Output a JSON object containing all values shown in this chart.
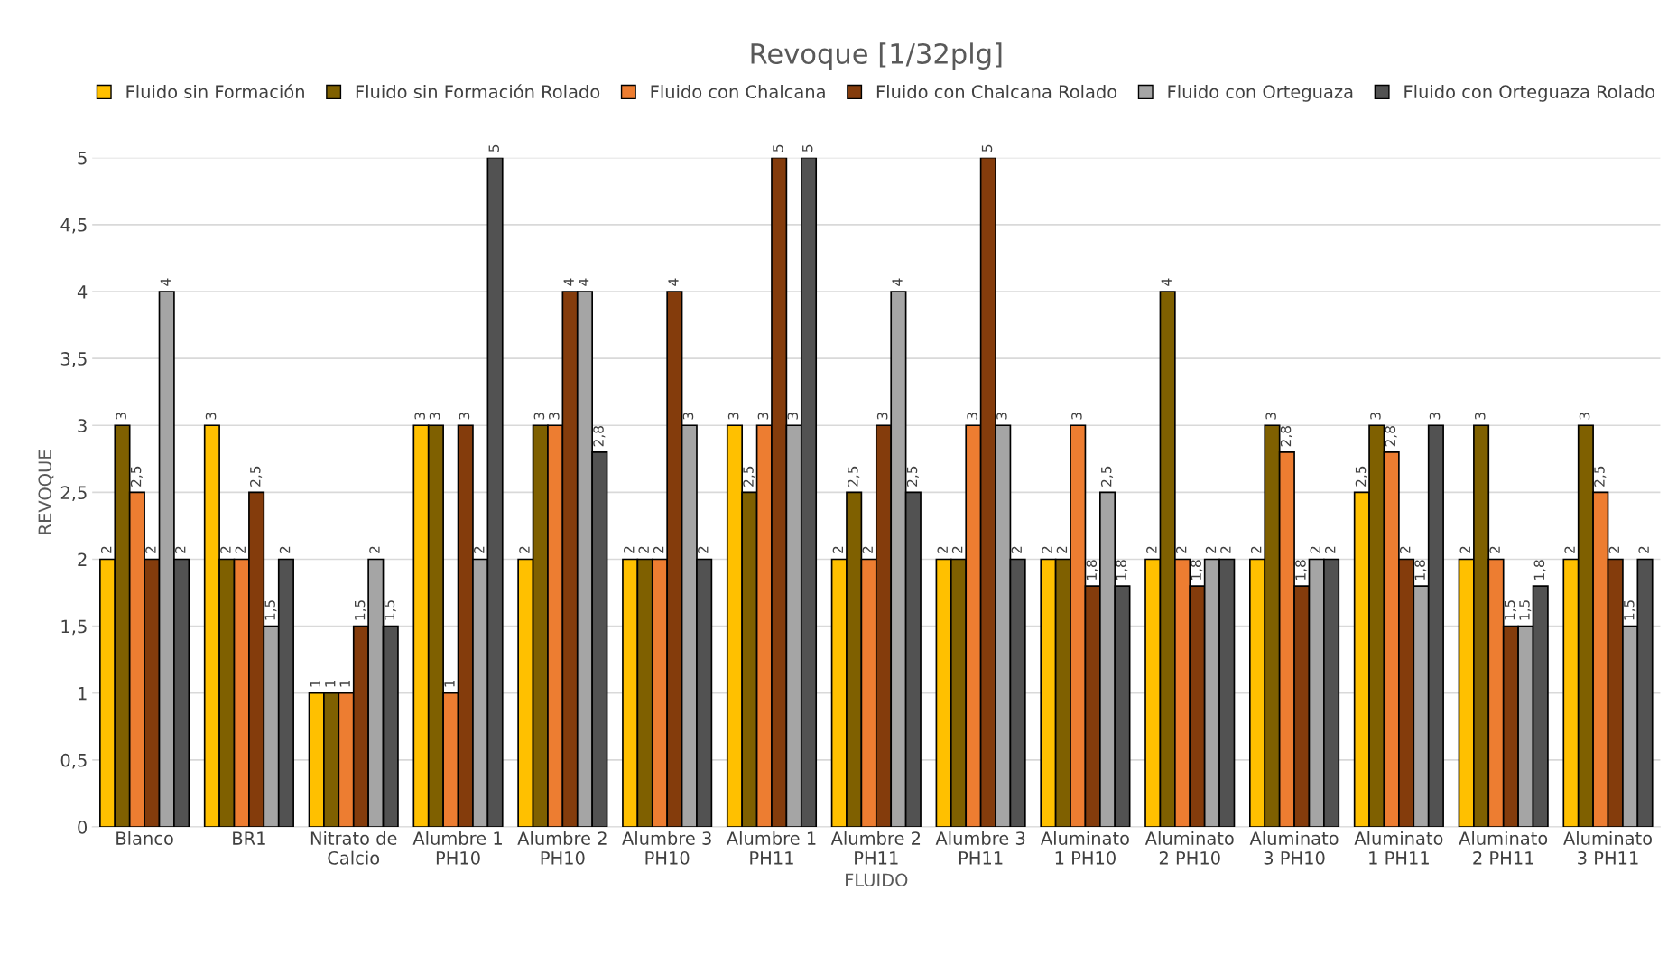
{
  "chart_data": {
    "type": "bar",
    "title": "Revoque [1/32plg]",
    "xlabel": "FLUIDO",
    "ylabel": "REVOQUE",
    "categories": [
      "Blanco",
      "BR1",
      "Nitrato de\nCalcio",
      "Alumbre 1\nPH10",
      "Alumbre 2\nPH10",
      "Alumbre 3\nPH10",
      "Alumbre 1\nPH11",
      "Alumbre 2\nPH11",
      "Alumbre 3\nPH11",
      "Aluminato\n1 PH10",
      "Aluminato\n2 PH10",
      "Aluminato\n3 PH10",
      "Aluminato\n1 PH11",
      "Aluminato\n2 PH11",
      "Aluminato\n3 PH11"
    ],
    "series": [
      {
        "name": "Fluido sin Formación",
        "color": "#ffc000",
        "values": [
          2,
          3,
          1,
          3,
          2,
          2,
          3,
          2,
          2,
          2,
          2,
          2,
          2.5,
          2,
          2
        ],
        "value_labels": [
          "2",
          "3",
          "1",
          "3",
          "2",
          "2",
          "3",
          "2",
          "2",
          "2",
          "2",
          "2",
          "2,5",
          "2",
          "2"
        ]
      },
      {
        "name": "Fluido sin Formación Rolado",
        "color": "#7f6000",
        "values": [
          3,
          2,
          1,
          3,
          3,
          2,
          2.5,
          2.5,
          2,
          2,
          4,
          3,
          3,
          3,
          3
        ],
        "value_labels": [
          "3",
          "2",
          "1",
          "3",
          "3",
          "2",
          "2,5",
          "2,5",
          "2",
          "2",
          "4",
          "3",
          "3",
          "3",
          "3"
        ]
      },
      {
        "name": "Fluido con Chalcana",
        "color": "#ed7d31",
        "values": [
          2.5,
          2,
          1,
          1,
          3,
          2,
          3,
          2,
          3,
          3,
          2,
          2.8,
          2.8,
          2,
          2.5
        ],
        "value_labels": [
          "2,5",
          "2",
          "1",
          "1",
          "3",
          "2",
          "3",
          "2",
          "3",
          "3",
          "2",
          "2,8",
          "2,8",
          "2",
          "2,5"
        ]
      },
      {
        "name": "Fluido con Chalcana Rolado",
        "color": "#843c0c",
        "values": [
          2,
          2.5,
          1.5,
          3,
          4,
          4,
          5,
          3,
          5,
          1.8,
          1.8,
          1.8,
          2,
          1.5,
          2
        ],
        "value_labels": [
          "2",
          "2,5",
          "1,5",
          "3",
          "4",
          "4",
          "5",
          "3",
          "5",
          "1,8",
          "1,8",
          "1,8",
          "2",
          "1,5",
          "2"
        ]
      },
      {
        "name": "Fluido con Orteguaza",
        "color": "#a5a5a5",
        "values": [
          4,
          1.5,
          2,
          2,
          4,
          3,
          3,
          4,
          3,
          2.5,
          2,
          2,
          1.8,
          1.5,
          1.5
        ],
        "value_labels": [
          "4",
          "1,5",
          "2",
          "2",
          "4",
          "3",
          "3",
          "4",
          "3",
          "2,5",
          "2",
          "2",
          "1,8",
          "1,5",
          "1,5"
        ]
      },
      {
        "name": "Fluido con Orteguaza Rolado",
        "color": "#525252",
        "values": [
          2,
          2,
          1.5,
          5,
          2.8,
          2,
          5,
          2.5,
          2,
          1.8,
          2,
          2,
          3,
          1.8,
          2
        ],
        "value_labels": [
          "2",
          "2",
          "1,5",
          "5",
          "2,8",
          "2",
          "5",
          "2,5",
          "2",
          "1,8",
          "2",
          "2",
          "3",
          "1,8",
          "2"
        ]
      }
    ],
    "ylim": [
      0,
      5
    ],
    "yticks": [
      0,
      {
        "value": 0.5,
        "label": "0,5"
      },
      1,
      {
        "value": 1.5,
        "label": "1,5"
      },
      2,
      {
        "value": 2.5,
        "label": "2,5"
      },
      3,
      {
        "value": 3.5,
        "label": "3,5"
      },
      4,
      {
        "value": 4.5,
        "label": "4,5"
      },
      5
    ],
    "grid": "y",
    "legend": "top"
  }
}
